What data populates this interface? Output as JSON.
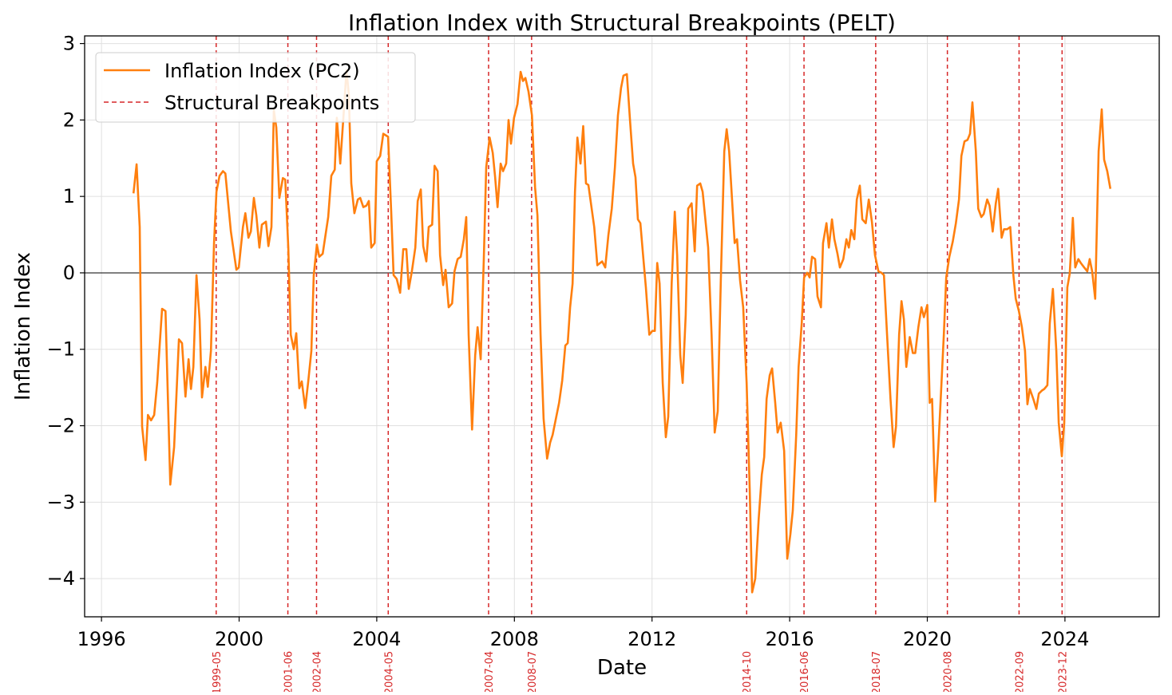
{
  "chart_data": {
    "type": "line",
    "title": "Inflation Index with Structural Breakpoints (PELT)",
    "xlabel": "Date",
    "ylabel": "Inflation Index",
    "xlim": [
      1995.51,
      2026.74
    ],
    "ylim": [
      -4.5,
      3.1
    ],
    "grid": true,
    "legend_placement": "top-left",
    "xticks": [
      1996,
      2000,
      2004,
      2008,
      2012,
      2016,
      2020,
      2024
    ],
    "xtick_labels": [
      "1996",
      "2000",
      "2004",
      "2008",
      "2012",
      "2016",
      "2020",
      "2024"
    ],
    "yticks": [
      -4,
      -3,
      -2,
      -1,
      0,
      1,
      2,
      3
    ],
    "ytick_labels": [
      "−4",
      "−3",
      "−2",
      "−1",
      "0",
      "1",
      "2",
      "3"
    ],
    "colors": {
      "series": "#ff7f0e",
      "breakpoints": "#d62728",
      "grid": "#e0e0e0"
    },
    "legend": [
      "Inflation Index (PC2)",
      "Structural Breakpoints"
    ],
    "series": [
      {
        "name": "Inflation Index (PC2)",
        "x": [
          1996.93,
          1997.02,
          1997.11,
          1997.18,
          1997.28,
          1997.35,
          1997.44,
          1997.53,
          1997.62,
          1997.76,
          1997.86,
          1998.0,
          1998.11,
          1998.25,
          1998.34,
          1998.44,
          1998.53,
          1998.6,
          1998.67,
          1998.76,
          1998.85,
          1998.92,
          1999.02,
          1999.09,
          1999.18,
          1999.27,
          1999.34,
          1999.43,
          1999.53,
          1999.6,
          1999.76,
          1999.92,
          1999.99,
          2000.11,
          2000.18,
          2000.27,
          2000.34,
          2000.43,
          2000.5,
          2000.59,
          2000.66,
          2000.78,
          2000.85,
          2000.94,
          2001.01,
          2001.08,
          2001.17,
          2001.27,
          2001.34,
          2001.43,
          2001.5,
          2001.59,
          2001.66,
          2001.75,
          2001.82,
          2001.92,
          2002.01,
          2002.1,
          2002.17,
          2002.26,
          2002.33,
          2002.43,
          2002.59,
          2002.68,
          2002.78,
          2002.84,
          2002.94,
          2003.03,
          2003.12,
          2003.19,
          2003.26,
          2003.35,
          2003.45,
          2003.52,
          2003.61,
          2003.7,
          2003.77,
          2003.84,
          2003.94,
          2004.0,
          2004.1,
          2004.19,
          2004.33,
          2004.42,
          2004.49,
          2004.58,
          2004.68,
          2004.77,
          2004.86,
          2004.93,
          2005.02,
          2005.12,
          2005.19,
          2005.28,
          2005.35,
          2005.44,
          2005.51,
          2005.61,
          2005.68,
          2005.77,
          2005.84,
          2005.93,
          2006.0,
          2006.09,
          2006.19,
          2006.26,
          2006.35,
          2006.44,
          2006.53,
          2006.6,
          2006.67,
          2006.77,
          2006.86,
          2006.93,
          2007.02,
          2007.11,
          2007.18,
          2007.28,
          2007.37,
          2007.44,
          2007.51,
          2007.6,
          2007.67,
          2007.76,
          2007.83,
          2007.9,
          2007.99,
          2008.09,
          2008.18,
          2008.25,
          2008.32,
          2008.41,
          2008.51,
          2008.6,
          2008.67,
          2008.76,
          2008.85,
          2008.95,
          2009.04,
          2009.11,
          2009.3,
          2009.39,
          2009.48,
          2009.55,
          2009.62,
          2009.69,
          2009.76,
          2009.83,
          2009.92,
          2010.0,
          2010.08,
          2010.15,
          2010.32,
          2010.41,
          2010.55,
          2010.64,
          2010.73,
          2010.83,
          2010.92,
          2011.01,
          2011.1,
          2011.17,
          2011.27,
          2011.36,
          2011.45,
          2011.52,
          2011.59,
          2011.66,
          2011.75,
          2011.82,
          2011.92,
          2012.01,
          2012.08,
          2012.15,
          2012.22,
          2012.31,
          2012.4,
          2012.47,
          2012.57,
          2012.66,
          2012.73,
          2012.82,
          2012.89,
          2012.98,
          2013.05,
          2013.15,
          2013.24,
          2013.31,
          2013.4,
          2013.47,
          2013.63,
          2013.73,
          2013.82,
          2013.91,
          2014.0,
          2014.1,
          2014.17,
          2014.24,
          2014.4,
          2014.47,
          2014.56,
          2014.65,
          2014.75,
          2014.84,
          2014.91,
          2015.0,
          2015.1,
          2015.19,
          2015.26,
          2015.33,
          2015.42,
          2015.49,
          2015.58,
          2015.65,
          2015.74,
          2015.84,
          2015.93,
          2016.02,
          2016.09,
          2016.19,
          2016.26,
          2016.35,
          2016.42,
          2016.51,
          2016.58,
          2016.65,
          2016.74,
          2016.81,
          2016.91,
          2016.97,
          2017.07,
          2017.14,
          2017.23,
          2017.3,
          2017.39,
          2017.46,
          2017.56,
          2017.65,
          2017.72,
          2017.79,
          2017.88,
          2017.95,
          2018.04,
          2018.11,
          2018.21,
          2018.3,
          2018.39,
          2018.48,
          2018.58,
          2018.67,
          2018.74,
          2018.83,
          2018.93,
          2019.02,
          2019.09,
          2019.18,
          2019.25,
          2019.32,
          2019.39,
          2019.49,
          2019.58,
          2019.65,
          2019.74,
          2019.83,
          2019.9,
          2020.0,
          2020.07,
          2020.14,
          2020.23,
          2020.32,
          2020.39,
          2020.48,
          2020.55,
          2020.64,
          2020.74,
          2020.83,
          2020.92,
          2020.99,
          2021.08,
          2021.17,
          2021.24,
          2021.31,
          2021.41,
          2021.48,
          2021.57,
          2021.64,
          2021.74,
          2021.81,
          2021.9,
          2021.99,
          2022.06,
          2022.16,
          2022.23,
          2022.32,
          2022.41,
          2022.5,
          2022.57,
          2022.66,
          2022.75,
          2022.84,
          2022.91,
          2022.98,
          2023.08,
          2023.17,
          2023.24,
          2023.33,
          2023.4,
          2023.49,
          2023.56,
          2023.65,
          2023.75,
          2023.82,
          2023.91,
          2023.98,
          2024.07,
          2024.14,
          2024.23,
          2024.3,
          2024.39,
          2024.46,
          2024.56,
          2024.65,
          2024.72,
          2024.79,
          2024.88,
          2024.98,
          2025.07,
          2025.14,
          2025.23,
          2025.32
        ],
        "y": [
          1.04,
          1.42,
          0.6,
          -2.01,
          -2.45,
          -1.86,
          -1.93,
          -1.86,
          -1.44,
          -0.47,
          -0.5,
          -2.77,
          -2.28,
          -0.87,
          -0.92,
          -1.62,
          -1.13,
          -1.52,
          -1.23,
          -0.03,
          -0.61,
          -1.63,
          -1.23,
          -1.49,
          -1.02,
          0.39,
          1.06,
          1.27,
          1.33,
          1.3,
          0.54,
          0.04,
          0.07,
          0.6,
          0.78,
          0.46,
          0.54,
          0.98,
          0.75,
          0.33,
          0.63,
          0.67,
          0.35,
          0.6,
          2.13,
          1.9,
          0.98,
          1.24,
          1.22,
          0.33,
          -0.81,
          -1.0,
          -0.79,
          -1.51,
          -1.42,
          -1.77,
          -1.42,
          -1.02,
          -0.03,
          0.37,
          0.21,
          0.25,
          0.73,
          1.27,
          1.35,
          2.03,
          1.43,
          2.03,
          2.65,
          2.32,
          1.17,
          0.78,
          0.96,
          0.98,
          0.86,
          0.88,
          0.94,
          0.33,
          0.39,
          1.46,
          1.53,
          1.82,
          1.78,
          0.8,
          -0.03,
          -0.08,
          -0.26,
          0.31,
          0.31,
          -0.21,
          0.02,
          0.33,
          0.94,
          1.09,
          0.35,
          0.15,
          0.6,
          0.63,
          1.4,
          1.33,
          0.23,
          -0.16,
          0.04,
          -0.45,
          -0.4,
          0.02,
          0.18,
          0.21,
          0.44,
          0.73,
          -0.81,
          -2.05,
          -1.08,
          -0.71,
          -1.13,
          0.18,
          1.38,
          1.77,
          1.57,
          1.25,
          0.86,
          1.43,
          1.33,
          1.43,
          2.0,
          1.69,
          2.03,
          2.21,
          2.63,
          2.51,
          2.55,
          2.37,
          2.06,
          1.12,
          0.75,
          -0.81,
          -1.91,
          -2.43,
          -2.22,
          -2.12,
          -1.7,
          -1.41,
          -0.95,
          -0.92,
          -0.45,
          -0.14,
          1.06,
          1.77,
          1.43,
          1.92,
          1.17,
          1.15,
          0.6,
          0.1,
          0.15,
          0.07,
          0.49,
          0.84,
          1.38,
          2.06,
          2.42,
          2.58,
          2.6,
          2.0,
          1.43,
          1.25,
          0.7,
          0.65,
          0.18,
          -0.19,
          -0.81,
          -0.76,
          -0.76,
          0.13,
          -0.14,
          -1.44,
          -2.15,
          -1.88,
          -0.14,
          0.8,
          0.23,
          -1.08,
          -1.44,
          -0.55,
          0.84,
          0.91,
          0.28,
          1.14,
          1.17,
          1.06,
          0.33,
          -0.81,
          -2.09,
          -1.81,
          -0.08,
          1.59,
          1.88,
          1.59,
          0.39,
          0.44,
          -0.1,
          -0.45,
          -1.44,
          -2.85,
          -4.18,
          -4.0,
          -3.22,
          -2.64,
          -2.41,
          -1.65,
          -1.34,
          -1.25,
          -1.7,
          -2.09,
          -1.96,
          -2.33,
          -3.74,
          -3.42,
          -3.11,
          -2.12,
          -1.23,
          -0.66,
          -0.06,
          0.0,
          -0.06,
          0.21,
          0.18,
          -0.31,
          -0.45,
          0.39,
          0.65,
          0.33,
          0.7,
          0.44,
          0.25,
          0.07,
          0.18,
          0.44,
          0.33,
          0.56,
          0.44,
          0.96,
          1.14,
          0.7,
          0.65,
          0.96,
          0.67,
          0.23,
          0.02,
          0.0,
          -0.03,
          -0.81,
          -1.65,
          -2.28,
          -2.01,
          -0.81,
          -0.37,
          -0.61,
          -1.23,
          -0.84,
          -1.05,
          -1.05,
          -0.71,
          -0.45,
          -0.58,
          -0.42,
          -1.7,
          -1.65,
          -2.99,
          -2.28,
          -1.65,
          -0.81,
          -0.06,
          0.21,
          0.41,
          0.65,
          0.96,
          1.53,
          1.72,
          1.74,
          1.82,
          2.23,
          1.59,
          0.84,
          0.73,
          0.77,
          0.96,
          0.88,
          0.54,
          0.91,
          1.1,
          0.46,
          0.57,
          0.57,
          0.6,
          -0.03,
          -0.34,
          -0.5,
          -0.71,
          -1.02,
          -1.72,
          -1.52,
          -1.65,
          -1.78,
          -1.58,
          -1.54,
          -1.52,
          -1.47,
          -0.66,
          -0.21,
          -1.02,
          -1.96,
          -2.4,
          -1.96,
          -0.19,
          -0.01,
          0.72,
          0.07,
          0.18,
          0.13,
          0.07,
          0.02,
          0.18,
          0.02,
          -0.34,
          1.59,
          2.14,
          1.48,
          1.33,
          1.1
        ]
      }
    ],
    "breakpoints": [
      "1999-05",
      "2001-06",
      "2002-04",
      "2004-05",
      "2007-04",
      "2008-07",
      "2014-10",
      "2016-06",
      "2018-07",
      "2020-08",
      "2022-09",
      "2023-12"
    ]
  }
}
